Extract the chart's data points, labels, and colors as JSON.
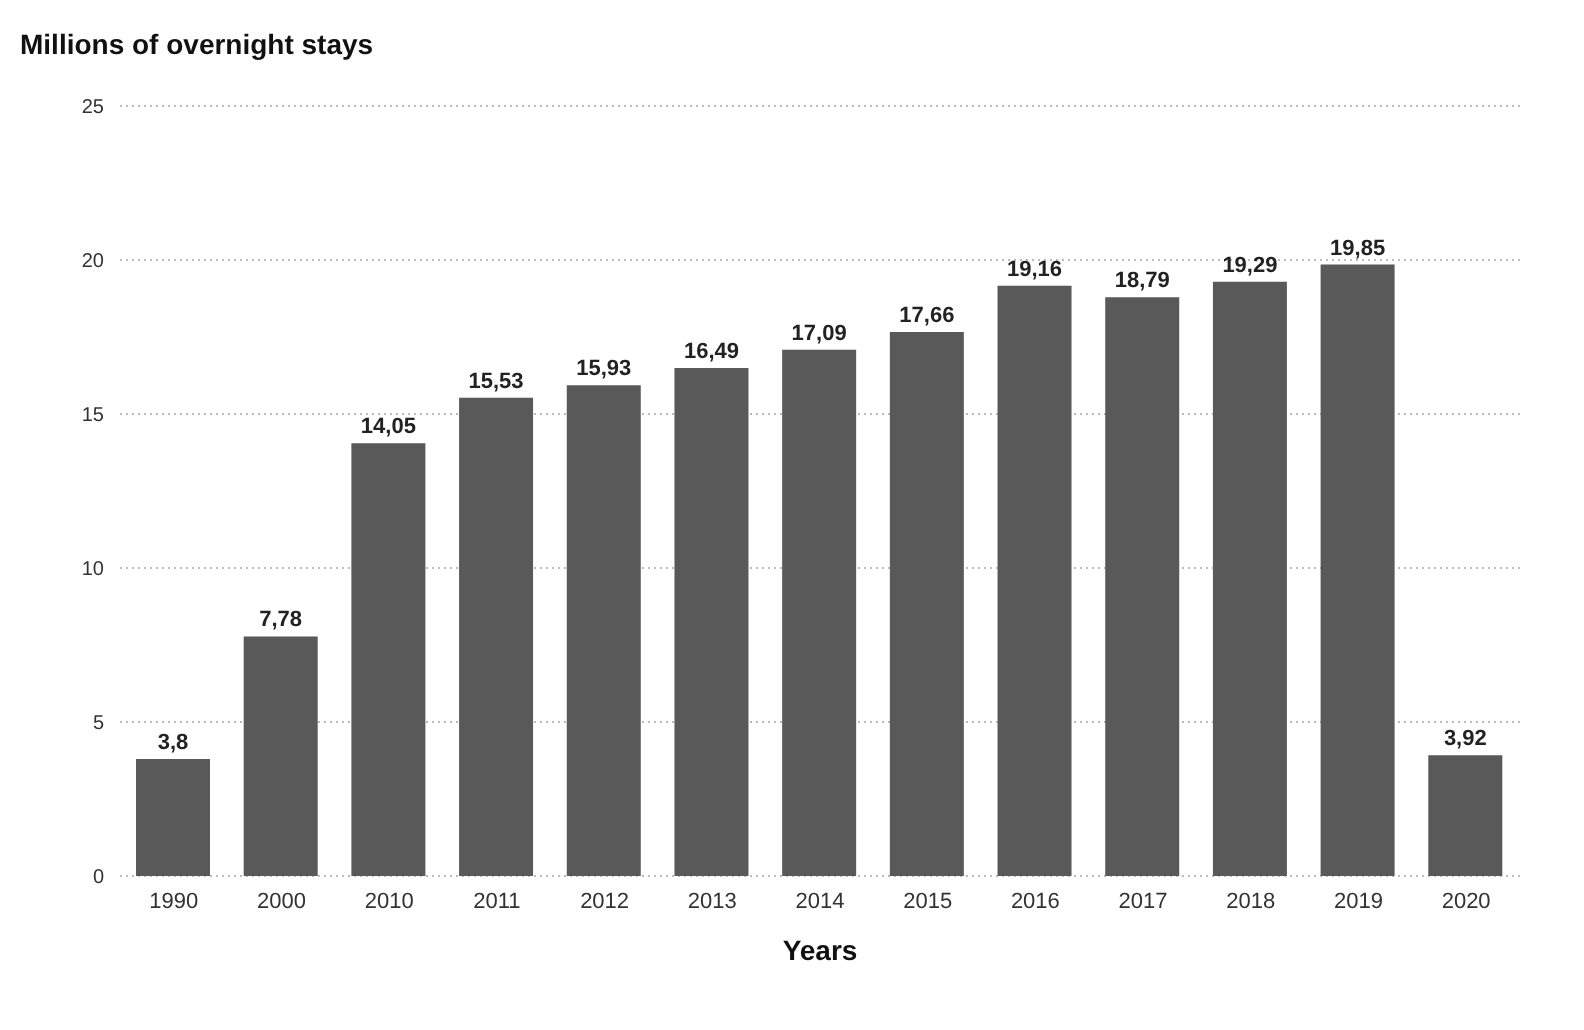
{
  "chart_data": {
    "type": "bar",
    "title": "Millions of overnight stays",
    "xlabel": "Years",
    "categories": [
      "1990",
      "2000",
      "2010",
      "2011",
      "2012",
      "2013",
      "2014",
      "2015",
      "2016",
      "2017",
      "2018",
      "2019",
      "2020"
    ],
    "values": [
      3.8,
      7.78,
      14.05,
      15.53,
      15.93,
      16.49,
      17.09,
      17.66,
      19.16,
      18.79,
      19.29,
      19.85,
      3.92
    ],
    "value_labels": [
      "3,8",
      "7,78",
      "14,05",
      "15,53",
      "15,93",
      "16,49",
      "17,09",
      "17,66",
      "19,16",
      "18,79",
      "19,29",
      "19,85",
      "3,92"
    ],
    "color": "#595959",
    "ylim": [
      0,
      25
    ],
    "yticks": [
      0,
      5,
      10,
      15,
      20,
      25
    ],
    "grid": "y"
  }
}
